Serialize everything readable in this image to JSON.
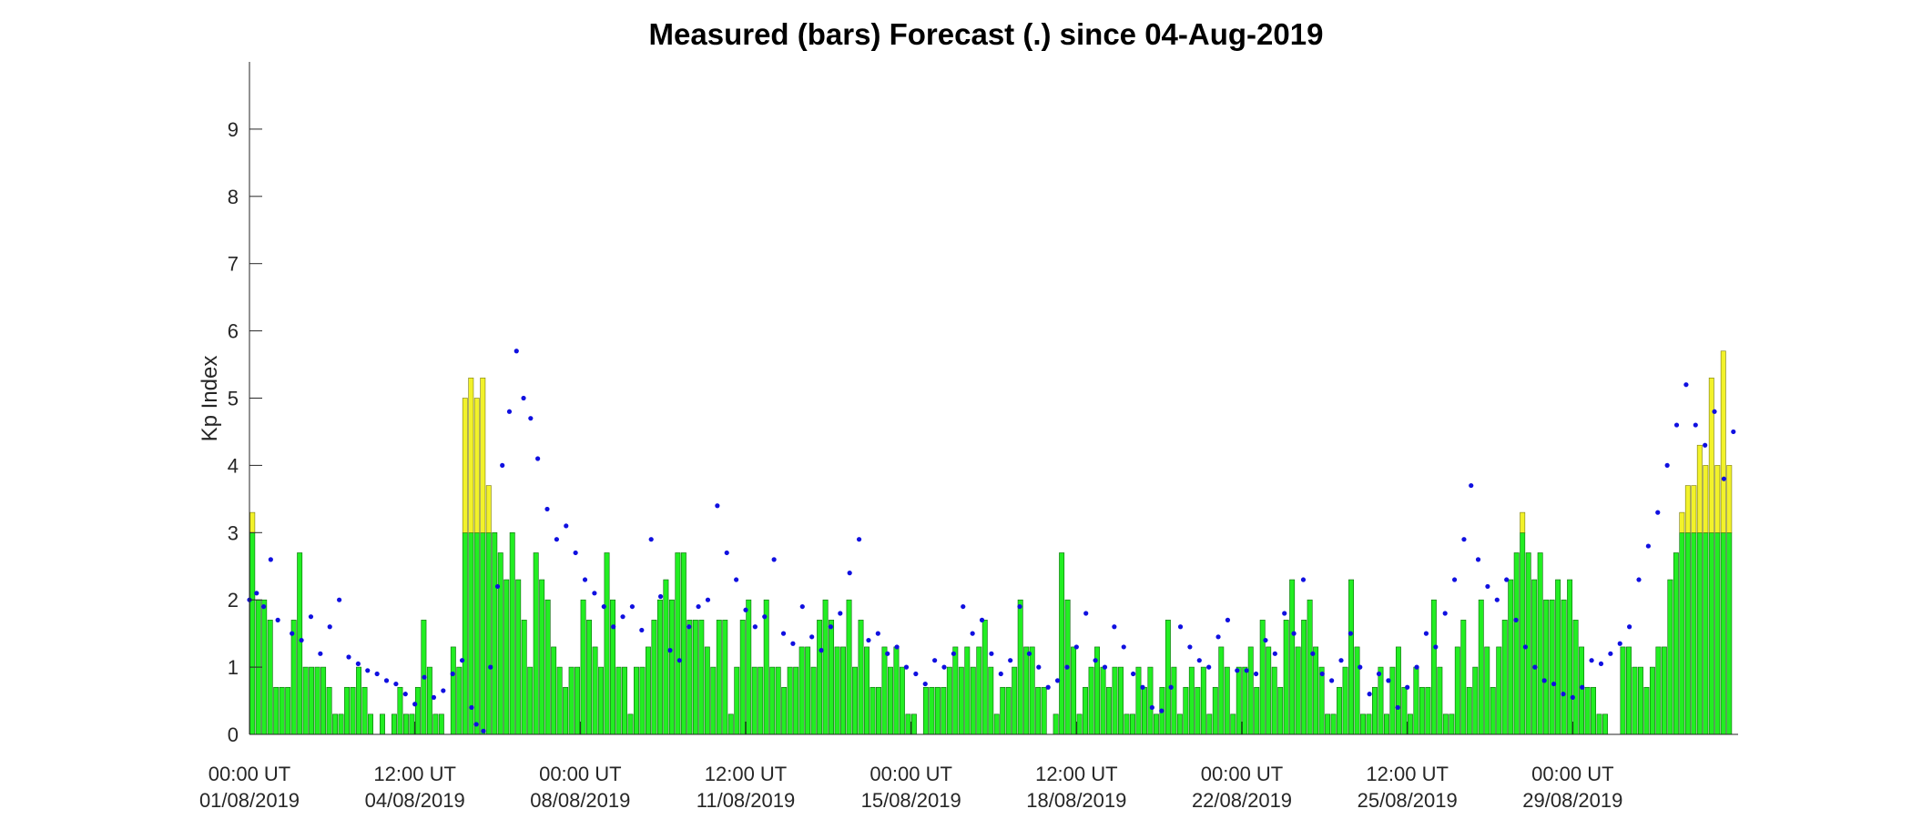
{
  "chart_data": {
    "type": "bar",
    "title": "Measured (bars) Forecast (.) since 04-Aug-2019",
    "xlabel": "",
    "ylabel": "Kp Index",
    "ylim": [
      0,
      10
    ],
    "yticks": [
      0,
      1,
      2,
      3,
      4,
      5,
      6,
      7,
      8,
      9
    ],
    "xlim_days": [
      0,
      31.5
    ],
    "xticks": [
      {
        "day": 0,
        "line1": "00:00 UT",
        "line2": "01/08/2019"
      },
      {
        "day": 3.5,
        "line1": "12:00 UT",
        "line2": "04/08/2019"
      },
      {
        "day": 7,
        "line1": "00:00 UT",
        "line2": "08/08/2019"
      },
      {
        "day": 10.5,
        "line1": "12:00 UT",
        "line2": "11/08/2019"
      },
      {
        "day": 14,
        "line1": "00:00 UT",
        "line2": "15/08/2019"
      },
      {
        "day": 17.5,
        "line1": "12:00 UT",
        "line2": "18/08/2019"
      },
      {
        "day": 21,
        "line1": "00:00 UT",
        "line2": "22/08/2019"
      },
      {
        "day": 24.5,
        "line1": "12:00 UT",
        "line2": "25/08/2019"
      },
      {
        "day": 28,
        "line1": "00:00 UT",
        "line2": "29/08/2019"
      }
    ],
    "bar_interval_hours": 3,
    "threshold": 3,
    "colors": {
      "below_threshold": "#22ee22",
      "above_threshold": "#f2f22a",
      "bar_edge": "#0a6a0a",
      "forecast": "#1010e0"
    },
    "measured": [
      3.3,
      2,
      2,
      1.7,
      0.7,
      0.7,
      0.7,
      1.7,
      2.7,
      1,
      1,
      1,
      1,
      0.7,
      0.3,
      0.3,
      0.7,
      0.7,
      1,
      0.7,
      0.3,
      0,
      0.3,
      0,
      0.3,
      0.7,
      0.3,
      0.3,
      0.7,
      1.7,
      1,
      0.3,
      0.3,
      0,
      1.3,
      1,
      5,
      5.3,
      5,
      5.3,
      3.7,
      3,
      2.7,
      2.3,
      3,
      2.3,
      1.7,
      1,
      2.7,
      2.3,
      2,
      1.3,
      1,
      0.7,
      1,
      1,
      2,
      1.7,
      1.3,
      1,
      2.7,
      2,
      1,
      1,
      0.3,
      1,
      1,
      1.3,
      1.7,
      2,
      2.3,
      2,
      2.7,
      2.7,
      1.7,
      1.7,
      1.7,
      1.3,
      1,
      1.7,
      1.7,
      0.3,
      1,
      1.7,
      2,
      1,
      1,
      2,
      1,
      1,
      0.7,
      1,
      1,
      1.3,
      1.3,
      1,
      1.7,
      2,
      1.7,
      1.3,
      1.3,
      2,
      1,
      1.7,
      1.3,
      0.7,
      0.7,
      1.3,
      1,
      1.3,
      1,
      0.3,
      0.3,
      0,
      0.7,
      0.7,
      0.7,
      0.7,
      1,
      1.3,
      1,
      1.3,
      1,
      1.3,
      1.7,
      1,
      0.3,
      0.7,
      0.7,
      1,
      2,
      1.3,
      1.3,
      0.7,
      0.7,
      0,
      0.3,
      2.7,
      2,
      1.3,
      0.3,
      0.7,
      1,
      1.3,
      1,
      0.7,
      1,
      1,
      0.3,
      0.3,
      1,
      0.7,
      1,
      0.3,
      0.7,
      1.7,
      1,
      0.3,
      0.7,
      1,
      0.7,
      1,
      0.3,
      0.7,
      1.3,
      1,
      0.3,
      1,
      1,
      1.3,
      0.7,
      1.7,
      1.3,
      1,
      0.7,
      1.7,
      2.3,
      1.3,
      1.7,
      2,
      1.3,
      1,
      0.3,
      0.3,
      0.7,
      1,
      2.3,
      1.3,
      0.3,
      0.3,
      0.7,
      1,
      0.3,
      1,
      1.3,
      0.7,
      0.3,
      1,
      0.7,
      0.7,
      2,
      1,
      0.3,
      0.3,
      1.3,
      1.7,
      0.7,
      1,
      2,
      1.3,
      0.7,
      1.3,
      1.7,
      2.3,
      2.7,
      3.3,
      2.7,
      2.3,
      2.7,
      2,
      2,
      2.3,
      2,
      2.3,
      1.7,
      1.3,
      0.7,
      0.7,
      0.3,
      0.3,
      0,
      0,
      1.3,
      1.3,
      1,
      1,
      0.7,
      1,
      1.3,
      1.3,
      2.3,
      2.7,
      3.3,
      3.7,
      3.7,
      4.3,
      4,
      5.3,
      4,
      5.7,
      4
    ],
    "forecast": [
      {
        "x": 0.0,
        "y": 2.0
      },
      {
        "x": 0.15,
        "y": 2.1
      },
      {
        "x": 0.3,
        "y": 1.9
      },
      {
        "x": 0.45,
        "y": 2.6
      },
      {
        "x": 0.6,
        "y": 1.7
      },
      {
        "x": 0.9,
        "y": 1.5
      },
      {
        "x": 1.1,
        "y": 1.4
      },
      {
        "x": 1.3,
        "y": 1.75
      },
      {
        "x": 1.5,
        "y": 1.2
      },
      {
        "x": 1.7,
        "y": 1.6
      },
      {
        "x": 1.9,
        "y": 2.0
      },
      {
        "x": 2.1,
        "y": 1.15
      },
      {
        "x": 2.3,
        "y": 1.05
      },
      {
        "x": 2.5,
        "y": 0.95
      },
      {
        "x": 2.7,
        "y": 0.9
      },
      {
        "x": 2.9,
        "y": 0.8
      },
      {
        "x": 3.1,
        "y": 0.75
      },
      {
        "x": 3.3,
        "y": 0.6
      },
      {
        "x": 3.5,
        "y": 0.45
      },
      {
        "x": 3.7,
        "y": 0.85
      },
      {
        "x": 3.9,
        "y": 0.55
      },
      {
        "x": 4.1,
        "y": 0.65
      },
      {
        "x": 4.3,
        "y": 0.9
      },
      {
        "x": 4.5,
        "y": 1.1
      },
      {
        "x": 4.7,
        "y": 0.4
      },
      {
        "x": 4.8,
        "y": 0.15
      },
      {
        "x": 4.95,
        "y": 0.05
      },
      {
        "x": 5.1,
        "y": 1.0
      },
      {
        "x": 5.25,
        "y": 2.2
      },
      {
        "x": 5.35,
        "y": 4.0
      },
      {
        "x": 5.5,
        "y": 4.8
      },
      {
        "x": 5.65,
        "y": 5.7
      },
      {
        "x": 5.8,
        "y": 5.0
      },
      {
        "x": 5.95,
        "y": 4.7
      },
      {
        "x": 6.1,
        "y": 4.1
      },
      {
        "x": 6.3,
        "y": 3.35
      },
      {
        "x": 6.5,
        "y": 2.9
      },
      {
        "x": 6.7,
        "y": 3.1
      },
      {
        "x": 6.9,
        "y": 2.7
      },
      {
        "x": 7.1,
        "y": 2.3
      },
      {
        "x": 7.3,
        "y": 2.1
      },
      {
        "x": 7.5,
        "y": 1.9
      },
      {
        "x": 7.7,
        "y": 1.6
      },
      {
        "x": 7.9,
        "y": 1.75
      },
      {
        "x": 8.1,
        "y": 1.9
      },
      {
        "x": 8.3,
        "y": 1.55
      },
      {
        "x": 8.5,
        "y": 2.9
      },
      {
        "x": 8.7,
        "y": 2.05
      },
      {
        "x": 8.9,
        "y": 1.25
      },
      {
        "x": 9.1,
        "y": 1.1
      },
      {
        "x": 9.3,
        "y": 1.6
      },
      {
        "x": 9.5,
        "y": 1.9
      },
      {
        "x": 9.7,
        "y": 2.0
      },
      {
        "x": 9.9,
        "y": 3.4
      },
      {
        "x": 10.1,
        "y": 2.7
      },
      {
        "x": 10.3,
        "y": 2.3
      },
      {
        "x": 10.5,
        "y": 1.85
      },
      {
        "x": 10.7,
        "y": 1.6
      },
      {
        "x": 10.9,
        "y": 1.75
      },
      {
        "x": 11.1,
        "y": 2.6
      },
      {
        "x": 11.3,
        "y": 1.5
      },
      {
        "x": 11.5,
        "y": 1.35
      },
      {
        "x": 11.7,
        "y": 1.9
      },
      {
        "x": 11.9,
        "y": 1.45
      },
      {
        "x": 12.1,
        "y": 1.25
      },
      {
        "x": 12.3,
        "y": 1.6
      },
      {
        "x": 12.5,
        "y": 1.8
      },
      {
        "x": 12.7,
        "y": 2.4
      },
      {
        "x": 12.9,
        "y": 2.9
      },
      {
        "x": 13.1,
        "y": 1.4
      },
      {
        "x": 13.3,
        "y": 1.5
      },
      {
        "x": 13.5,
        "y": 1.2
      },
      {
        "x": 13.7,
        "y": 1.3
      },
      {
        "x": 13.9,
        "y": 1.0
      },
      {
        "x": 14.1,
        "y": 0.9
      },
      {
        "x": 14.3,
        "y": 0.75
      },
      {
        "x": 14.5,
        "y": 1.1
      },
      {
        "x": 14.7,
        "y": 1.0
      },
      {
        "x": 14.9,
        "y": 1.2
      },
      {
        "x": 15.1,
        "y": 1.9
      },
      {
        "x": 15.3,
        "y": 1.5
      },
      {
        "x": 15.5,
        "y": 1.7
      },
      {
        "x": 15.7,
        "y": 1.2
      },
      {
        "x": 15.9,
        "y": 0.9
      },
      {
        "x": 16.1,
        "y": 1.1
      },
      {
        "x": 16.3,
        "y": 1.9
      },
      {
        "x": 16.5,
        "y": 1.2
      },
      {
        "x": 16.7,
        "y": 1.0
      },
      {
        "x": 16.9,
        "y": 0.7
      },
      {
        "x": 17.1,
        "y": 0.8
      },
      {
        "x": 17.3,
        "y": 1.0
      },
      {
        "x": 17.5,
        "y": 1.3
      },
      {
        "x": 17.7,
        "y": 1.8
      },
      {
        "x": 17.9,
        "y": 1.1
      },
      {
        "x": 18.1,
        "y": 1.0
      },
      {
        "x": 18.3,
        "y": 1.6
      },
      {
        "x": 18.5,
        "y": 1.3
      },
      {
        "x": 18.7,
        "y": 0.9
      },
      {
        "x": 18.9,
        "y": 0.7
      },
      {
        "x": 19.1,
        "y": 0.4
      },
      {
        "x": 19.3,
        "y": 0.35
      },
      {
        "x": 19.5,
        "y": 0.7
      },
      {
        "x": 19.7,
        "y": 1.6
      },
      {
        "x": 19.9,
        "y": 1.3
      },
      {
        "x": 20.1,
        "y": 1.1
      },
      {
        "x": 20.3,
        "y": 1.0
      },
      {
        "x": 20.5,
        "y": 1.45
      },
      {
        "x": 20.7,
        "y": 1.7
      },
      {
        "x": 20.9,
        "y": 0.95
      },
      {
        "x": 21.1,
        "y": 0.95
      },
      {
        "x": 21.3,
        "y": 0.9
      },
      {
        "x": 21.5,
        "y": 1.4
      },
      {
        "x": 21.7,
        "y": 1.2
      },
      {
        "x": 21.9,
        "y": 1.8
      },
      {
        "x": 22.1,
        "y": 1.5
      },
      {
        "x": 22.3,
        "y": 2.3
      },
      {
        "x": 22.5,
        "y": 1.2
      },
      {
        "x": 22.7,
        "y": 0.9
      },
      {
        "x": 22.9,
        "y": 0.8
      },
      {
        "x": 23.1,
        "y": 1.1
      },
      {
        "x": 23.3,
        "y": 1.5
      },
      {
        "x": 23.5,
        "y": 1.0
      },
      {
        "x": 23.7,
        "y": 0.6
      },
      {
        "x": 23.9,
        "y": 0.9
      },
      {
        "x": 24.1,
        "y": 0.8
      },
      {
        "x": 24.3,
        "y": 0.4
      },
      {
        "x": 24.5,
        "y": 0.7
      },
      {
        "x": 24.7,
        "y": 1.0
      },
      {
        "x": 24.9,
        "y": 1.5
      },
      {
        "x": 25.1,
        "y": 1.3
      },
      {
        "x": 25.3,
        "y": 1.8
      },
      {
        "x": 25.5,
        "y": 2.3
      },
      {
        "x": 25.7,
        "y": 2.9
      },
      {
        "x": 25.85,
        "y": 3.7
      },
      {
        "x": 26.0,
        "y": 2.6
      },
      {
        "x": 26.2,
        "y": 2.2
      },
      {
        "x": 26.4,
        "y": 2.0
      },
      {
        "x": 26.6,
        "y": 2.3
      },
      {
        "x": 26.8,
        "y": 1.7
      },
      {
        "x": 27.0,
        "y": 1.3
      },
      {
        "x": 27.2,
        "y": 1.0
      },
      {
        "x": 27.4,
        "y": 0.8
      },
      {
        "x": 27.6,
        "y": 0.75
      },
      {
        "x": 27.8,
        "y": 0.6
      },
      {
        "x": 28.0,
        "y": 0.55
      },
      {
        "x": 28.2,
        "y": 0.7
      },
      {
        "x": 28.4,
        "y": 1.1
      },
      {
        "x": 28.6,
        "y": 1.05
      },
      {
        "x": 28.8,
        "y": 1.2
      },
      {
        "x": 29.0,
        "y": 1.35
      },
      {
        "x": 29.2,
        "y": 1.6
      },
      {
        "x": 29.4,
        "y": 2.3
      },
      {
        "x": 29.6,
        "y": 2.8
      },
      {
        "x": 29.8,
        "y": 3.3
      },
      {
        "x": 30.0,
        "y": 4.0
      },
      {
        "x": 30.2,
        "y": 4.6
      },
      {
        "x": 30.4,
        "y": 5.2
      },
      {
        "x": 30.6,
        "y": 4.6
      },
      {
        "x": 30.8,
        "y": 4.3
      },
      {
        "x": 31.0,
        "y": 4.8
      },
      {
        "x": 31.2,
        "y": 3.8
      },
      {
        "x": 31.4,
        "y": 4.5
      }
    ]
  }
}
